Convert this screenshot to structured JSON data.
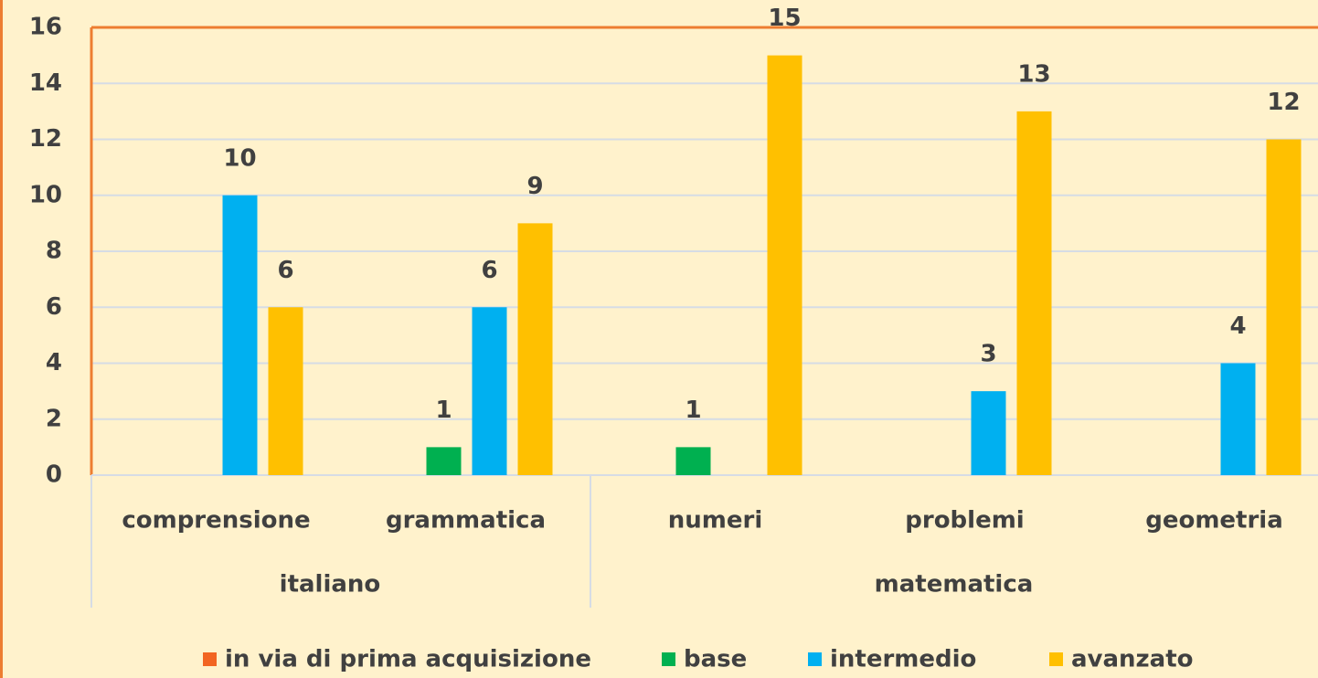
{
  "chart_data": {
    "type": "bar",
    "category_groups": [
      {
        "name": "italiano",
        "categories": [
          "comprensione",
          "grammatica"
        ]
      },
      {
        "name": "matematica",
        "categories": [
          "numeri",
          "problemi",
          "geometria"
        ]
      }
    ],
    "series": [
      {
        "name": "in via di prima acquisizione",
        "color": "#f26522",
        "values": [
          null,
          null,
          null,
          null,
          null
        ]
      },
      {
        "name": "base",
        "color": "#00b050",
        "values": [
          null,
          1,
          1,
          null,
          null
        ]
      },
      {
        "name": "intermedio",
        "color": "#00b0f0",
        "values": [
          10,
          6,
          null,
          3,
          4
        ]
      },
      {
        "name": "avanzato",
        "color": "#ffc000",
        "values": [
          6,
          9,
          15,
          13,
          12
        ]
      }
    ],
    "ylim": [
      0,
      16
    ],
    "yticks": [
      0,
      2,
      4,
      6,
      8,
      10,
      12,
      14,
      16
    ],
    "grid": true,
    "data_labels": true,
    "legend": "bottom"
  }
}
